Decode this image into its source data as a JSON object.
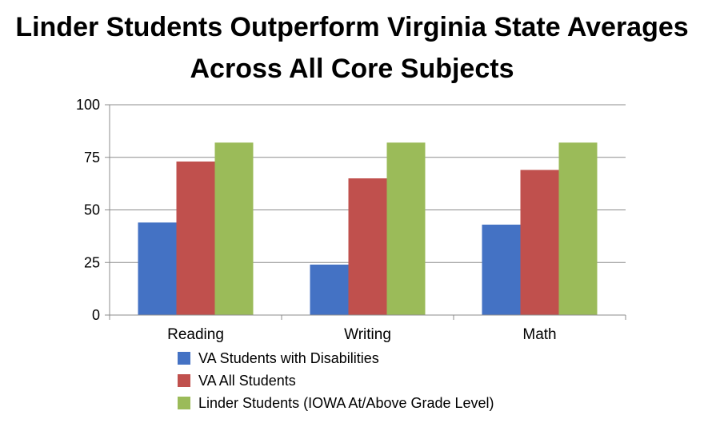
{
  "title": {
    "line1": "Linder Students Outperform Virginia State Averages",
    "line2": "Across All Core Subjects"
  },
  "chart_data": {
    "type": "bar",
    "categories": [
      "Reading",
      "Writing",
      "Math"
    ],
    "series": [
      {
        "name": "VA Students with Disabilities",
        "values": [
          44,
          24,
          43
        ],
        "color": "#4472C4"
      },
      {
        "name": "VA All Students",
        "values": [
          73,
          65,
          69
        ],
        "color": "#C0504D"
      },
      {
        "name": "Linder Students (IOWA At/Above Grade Level)",
        "values": [
          82,
          82,
          82
        ],
        "color": "#9BBB59"
      }
    ],
    "y_ticks": [
      "0",
      "25",
      "50",
      "75",
      "100"
    ],
    "ylim": [
      0,
      100
    ],
    "grid": true,
    "legend_position": "bottom"
  }
}
